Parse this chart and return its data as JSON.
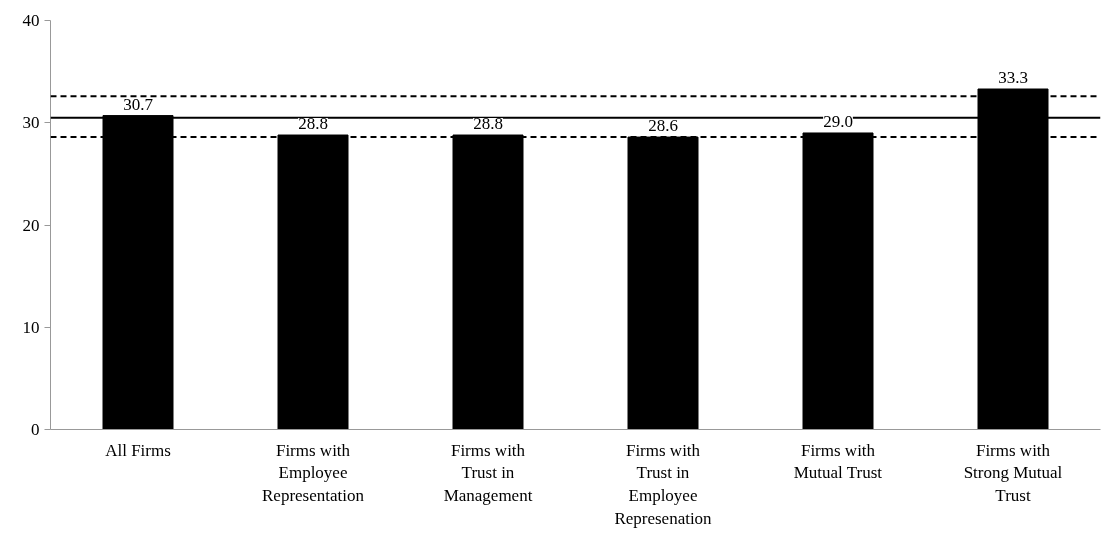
{
  "chart_data": {
    "type": "bar",
    "categories": [
      "All Firms",
      "Firms with Employee Representation",
      "Firms with Trust in Management",
      "Firms with Trust in Employee Represenation",
      "Firms with Mutual Trust",
      "Firms with Strong Mutual Trust"
    ],
    "values": [
      30.7,
      28.8,
      28.8,
      28.6,
      29.0,
      33.3
    ],
    "color": "#000000",
    "value_labels": [
      "30.7",
      "28.8",
      "28.8",
      "28.6",
      "29.0",
      "33.3"
    ],
    "ylim": [
      0,
      40
    ],
    "yticks": [
      0,
      10,
      20,
      30,
      40
    ],
    "grid": false,
    "ref_lines": [
      {
        "axis": "y",
        "value": 30.5,
        "line_style": "solid",
        "color": "#000000"
      },
      {
        "axis": "y",
        "value": 32.6,
        "line_style": "dashed",
        "color": "#000000"
      },
      {
        "axis": "y",
        "value": 28.6,
        "line_style": "dashed",
        "color": "#000000"
      }
    ]
  }
}
